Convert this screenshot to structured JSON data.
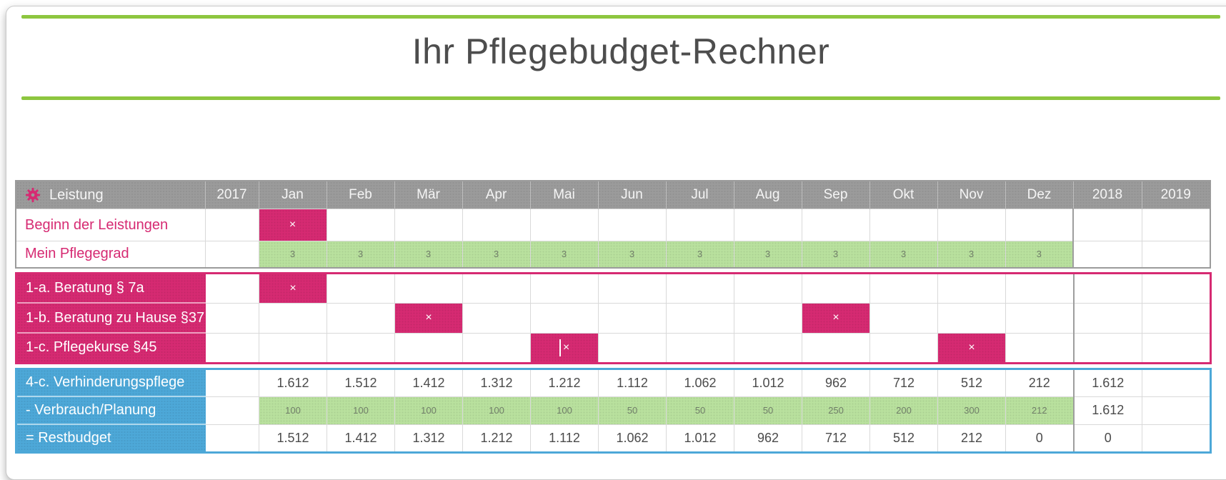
{
  "title": "Ihr Pflegebudget-Rechner",
  "colors": {
    "accent_green": "#8dc63f",
    "header_gray": "#9b9b9b",
    "pink": "#d62a72",
    "light_green": "#b9e19e",
    "blue": "#4da8d8",
    "text_dark": "#4b4b4b"
  },
  "table": {
    "header": {
      "icon": "gear-icon",
      "label": "Leistung",
      "columns": [
        "2017",
        "Jan",
        "Feb",
        "Mär",
        "Apr",
        "Mai",
        "Jun",
        "Jul",
        "Aug",
        "Sep",
        "Okt",
        "Nov",
        "Dez",
        "2018",
        "2019"
      ]
    },
    "sections": [
      {
        "name": "base",
        "style": "gray",
        "rows": [
          {
            "id": "beginn-der-leistungen",
            "label": "Beginn der Leistungen",
            "editable": true,
            "cells": [
              null,
              {
                "text": "×",
                "variant": "pink"
              },
              null,
              null,
              null,
              null,
              null,
              null,
              null,
              null,
              null,
              null,
              null,
              null,
              null
            ]
          },
          {
            "id": "mein-pflegegrad",
            "label": "Mein Pflegegrad",
            "editable": true,
            "cells": [
              null,
              {
                "text": "3",
                "variant": "green"
              },
              {
                "text": "3",
                "variant": "green"
              },
              {
                "text": "3",
                "variant": "green"
              },
              {
                "text": "3",
                "variant": "green"
              },
              {
                "text": "3",
                "variant": "green"
              },
              {
                "text": "3",
                "variant": "green"
              },
              {
                "text": "3",
                "variant": "green"
              },
              {
                "text": "3",
                "variant": "green"
              },
              {
                "text": "3",
                "variant": "green"
              },
              {
                "text": "3",
                "variant": "green"
              },
              {
                "text": "3",
                "variant": "green"
              },
              {
                "text": "3",
                "variant": "green"
              },
              null,
              null
            ]
          }
        ]
      },
      {
        "name": "beratung",
        "style": "pink",
        "rows": [
          {
            "id": "1-a-beratung-7a",
            "label": "1-a. Beratung § 7a",
            "editable": true,
            "cells": [
              null,
              {
                "text": "×",
                "variant": "pink"
              },
              null,
              null,
              null,
              null,
              null,
              null,
              null,
              null,
              null,
              null,
              null,
              null,
              null
            ]
          },
          {
            "id": "1-b-beratung-zu-hause-37",
            "label": "1-b. Beratung zu Hause §37",
            "editable": true,
            "cells": [
              null,
              null,
              null,
              {
                "text": "×",
                "variant": "pink"
              },
              null,
              null,
              null,
              null,
              null,
              {
                "text": "×",
                "variant": "pink"
              },
              null,
              null,
              null,
              null,
              null
            ]
          },
          {
            "id": "1-c-pflegekurse-45",
            "label": "1-c. Pflegekurse §45",
            "editable": true,
            "cells": [
              null,
              null,
              null,
              null,
              null,
              {
                "text": "×",
                "variant": "pink",
                "caret": true
              },
              null,
              null,
              null,
              null,
              null,
              {
                "text": "×",
                "variant": "pink"
              },
              null,
              null,
              null
            ]
          }
        ]
      },
      {
        "name": "budget",
        "style": "blue",
        "rows": [
          {
            "id": "4-c-verhinderungspflege",
            "label": "4-c. Verhinderungspflege",
            "editable": false,
            "cells": [
              null,
              {
                "text": "1.612"
              },
              {
                "text": "1.512"
              },
              {
                "text": "1.412"
              },
              {
                "text": "1.312"
              },
              {
                "text": "1.212"
              },
              {
                "text": "1.112"
              },
              {
                "text": "1.062"
              },
              {
                "text": "1.012"
              },
              {
                "text": "962"
              },
              {
                "text": "712"
              },
              {
                "text": "512"
              },
              {
                "text": "212"
              },
              {
                "text": "1.612"
              },
              null
            ]
          },
          {
            "id": "verbrauch-planung",
            "label": "- Verbrauch/Planung",
            "editable": true,
            "cells": [
              null,
              {
                "text": "100",
                "variant": "green"
              },
              {
                "text": "100",
                "variant": "green"
              },
              {
                "text": "100",
                "variant": "green"
              },
              {
                "text": "100",
                "variant": "green"
              },
              {
                "text": "100",
                "variant": "green"
              },
              {
                "text": "50",
                "variant": "green"
              },
              {
                "text": "50",
                "variant": "green"
              },
              {
                "text": "50",
                "variant": "green"
              },
              {
                "text": "250",
                "variant": "green"
              },
              {
                "text": "200",
                "variant": "green"
              },
              {
                "text": "300",
                "variant": "green"
              },
              {
                "text": "212",
                "variant": "green"
              },
              {
                "text": "1.612"
              },
              null
            ]
          },
          {
            "id": "restbudget",
            "label": "= Restbudget",
            "editable": false,
            "cells": [
              null,
              {
                "text": "1.512"
              },
              {
                "text": "1.412"
              },
              {
                "text": "1.312"
              },
              {
                "text": "1.212"
              },
              {
                "text": "1.112"
              },
              {
                "text": "1.062"
              },
              {
                "text": "1.012"
              },
              {
                "text": "962"
              },
              {
                "text": "712"
              },
              {
                "text": "512"
              },
              {
                "text": "212"
              },
              {
                "text": "0"
              },
              {
                "text": "0"
              },
              null
            ]
          }
        ]
      }
    ]
  }
}
